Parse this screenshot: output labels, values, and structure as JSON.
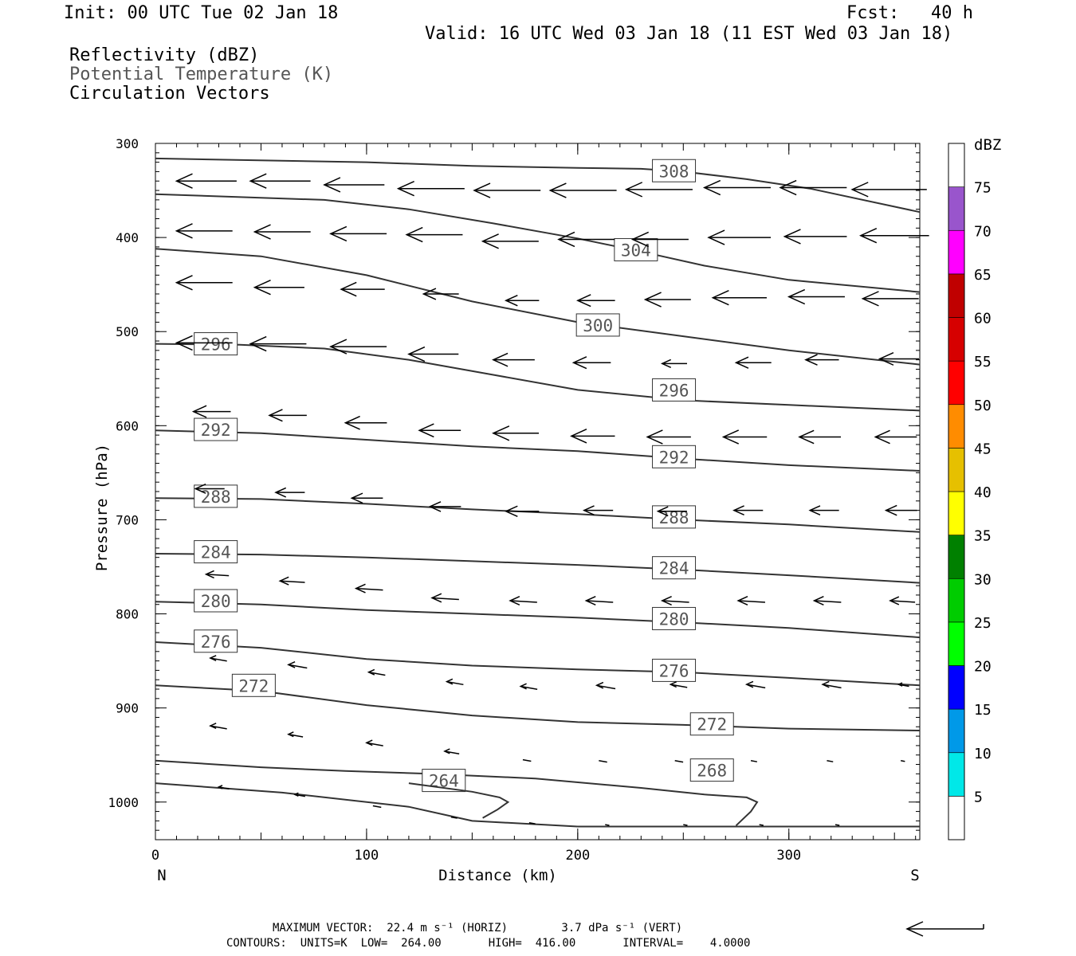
{
  "header": {
    "init": "Init: 00 UTC Tue 02 Jan 18",
    "fcst": "Fcst:   40 h",
    "valid": "Valid: 16 UTC Wed 03 Jan 18 (11 EST Wed 03 Jan 18)"
  },
  "fields": {
    "reflectivity": "Reflectivity (dBZ)",
    "theta": "Potential Temperature (K)",
    "vectors": "Circulation Vectors"
  },
  "colors": {
    "theta_contour": "#333333",
    "theta_label": "#555555",
    "colorbar": [
      "#00e8e8",
      "#0099e8",
      "#0000ff",
      "#00ff00",
      "#00cc00",
      "#008000",
      "#ffff00",
      "#e6c000",
      "#ff8c00",
      "#ff0000",
      "#d60000",
      "#c00000",
      "#ff00ff",
      "#9955cc"
    ]
  },
  "footer": {
    "max_vector": "MAXIMUM VECTOR:  22.4 m s⁻¹ (HORIZ)        3.7 dPa s⁻¹ (VERT)",
    "contours": "CONTOURS:  UNITS=K  LOW=  264.00       HIGH=  416.00       INTERVAL=    4.0000"
  },
  "chart_data": {
    "type": "line",
    "xlabel": "Distance (km)",
    "ylabel": "Pressure (hPa)",
    "xlim": [
      0,
      362
    ],
    "ylim": [
      1040,
      300
    ],
    "x_ticks": [
      0,
      100,
      200,
      300
    ],
    "y_ticks": [
      300,
      400,
      500,
      600,
      700,
      800,
      900,
      1000
    ],
    "left_end_label": "N",
    "right_end_label": "S",
    "colorbar": {
      "unit": "dBZ",
      "levels": [
        5,
        10,
        15,
        20,
        25,
        30,
        35,
        40,
        45,
        50,
        55,
        60,
        65,
        70,
        75
      ]
    },
    "theta_contours": [
      {
        "level": 308,
        "points": [
          [
            0,
            316
          ],
          [
            100,
            320
          ],
          [
            150,
            324
          ],
          [
            200,
            326
          ],
          [
            230,
            327
          ],
          [
            250,
            330
          ],
          [
            280,
            338
          ],
          [
            310,
            348
          ],
          [
            362,
            373
          ]
        ],
        "labels": [
          [
            235,
            329
          ]
        ]
      },
      {
        "level": 304,
        "points": [
          [
            0,
            354
          ],
          [
            80,
            360
          ],
          [
            120,
            370
          ],
          [
            160,
            385
          ],
          [
            200,
            401
          ],
          [
            230,
            415
          ],
          [
            260,
            430
          ],
          [
            300,
            445
          ],
          [
            362,
            458
          ]
        ],
        "labels": [
          [
            217,
            413
          ]
        ]
      },
      {
        "level": 300,
        "points": [
          [
            0,
            412
          ],
          [
            50,
            420
          ],
          [
            100,
            440
          ],
          [
            150,
            468
          ],
          [
            200,
            490
          ],
          [
            250,
            505
          ],
          [
            300,
            520
          ],
          [
            362,
            535
          ]
        ],
        "labels": [
          [
            199,
            493
          ]
        ]
      },
      {
        "level": 296,
        "points": [
          [
            0,
            513
          ],
          [
            40,
            514
          ],
          [
            80,
            518
          ],
          [
            120,
            530
          ],
          [
            160,
            546
          ],
          [
            200,
            562
          ],
          [
            250,
            573
          ],
          [
            300,
            578
          ],
          [
            362,
            584
          ]
        ],
        "labels": [
          [
            18,
            513
          ],
          [
            235,
            562
          ]
        ]
      },
      {
        "level": 292,
        "points": [
          [
            0,
            605
          ],
          [
            50,
            608
          ],
          [
            100,
            615
          ],
          [
            150,
            622
          ],
          [
            200,
            627
          ],
          [
            250,
            635
          ],
          [
            300,
            642
          ],
          [
            362,
            648
          ]
        ],
        "labels": [
          [
            18,
            604
          ],
          [
            235,
            633
          ]
        ]
      },
      {
        "level": 288,
        "points": [
          [
            0,
            677
          ],
          [
            50,
            678
          ],
          [
            100,
            683
          ],
          [
            150,
            689
          ],
          [
            200,
            694
          ],
          [
            250,
            700
          ],
          [
            300,
            705
          ],
          [
            362,
            713
          ]
        ],
        "labels": [
          [
            18,
            675
          ],
          [
            235,
            697
          ]
        ]
      },
      {
        "level": 284,
        "points": [
          [
            0,
            736
          ],
          [
            50,
            737
          ],
          [
            100,
            740
          ],
          [
            150,
            744
          ],
          [
            200,
            748
          ],
          [
            250,
            753
          ],
          [
            300,
            759
          ],
          [
            362,
            767
          ]
        ],
        "labels": [
          [
            18,
            734
          ],
          [
            235,
            751
          ]
        ]
      },
      {
        "level": 280,
        "points": [
          [
            0,
            787
          ],
          [
            50,
            790
          ],
          [
            100,
            796
          ],
          [
            150,
            800
          ],
          [
            200,
            804
          ],
          [
            250,
            809
          ],
          [
            300,
            815
          ],
          [
            362,
            825
          ]
        ],
        "labels": [
          [
            18,
            786
          ],
          [
            235,
            805
          ]
        ]
      },
      {
        "level": 276,
        "points": [
          [
            0,
            830
          ],
          [
            50,
            836
          ],
          [
            100,
            848
          ],
          [
            150,
            855
          ],
          [
            200,
            859
          ],
          [
            250,
            862
          ],
          [
            300,
            868
          ],
          [
            362,
            876
          ]
        ],
        "labels": [
          [
            18,
            829
          ],
          [
            235,
            860
          ]
        ]
      },
      {
        "level": 272,
        "points": [
          [
            0,
            876
          ],
          [
            50,
            882
          ],
          [
            100,
            897
          ],
          [
            150,
            908
          ],
          [
            200,
            915
          ],
          [
            250,
            918
          ],
          [
            300,
            922
          ],
          [
            362,
            924
          ]
        ],
        "labels": [
          [
            36,
            876
          ],
          [
            253,
            917
          ]
        ]
      },
      {
        "level": 268,
        "points": [
          [
            0,
            956
          ],
          [
            50,
            963
          ],
          [
            90,
            967
          ],
          [
            130,
            970
          ],
          [
            180,
            975
          ],
          [
            230,
            985
          ],
          [
            260,
            992
          ],
          [
            280,
            995
          ],
          [
            285,
            1000
          ],
          [
            282,
            1010
          ],
          [
            275,
            1025
          ]
        ],
        "labels": [
          [
            253,
            966
          ]
        ]
      },
      {
        "level": 264,
        "points": [
          [
            0,
            980
          ],
          [
            60,
            990
          ],
          [
            120,
            1005
          ],
          [
            150,
            1020
          ],
          [
            200,
            1026
          ],
          [
            362,
            1026
          ]
        ],
        "labels": [
          [
            126,
            977
          ]
        ]
      },
      {
        "level": 264,
        "points": [
          [
            120,
            980
          ],
          [
            150,
            989
          ],
          [
            163,
            995
          ],
          [
            167,
            1000
          ],
          [
            162,
            1008
          ],
          [
            155,
            1017
          ]
        ],
        "labels": []
      }
    ],
    "vectors": [
      {
        "x": 10,
        "p": 340,
        "len": 29
      },
      {
        "x": 45,
        "p": 340,
        "len": 29
      },
      {
        "x": 80,
        "p": 344,
        "len": 29
      },
      {
        "x": 115,
        "p": 348,
        "len": 32
      },
      {
        "x": 151,
        "p": 350,
        "len": 32
      },
      {
        "x": 187,
        "p": 350,
        "len": 32
      },
      {
        "x": 223,
        "p": 349,
        "len": 32
      },
      {
        "x": 260,
        "p": 347,
        "len": 32
      },
      {
        "x": 296,
        "p": 347,
        "len": 32
      },
      {
        "x": 330,
        "p": 349,
        "len": 36
      },
      {
        "x": 10,
        "p": 393,
        "len": 27
      },
      {
        "x": 47,
        "p": 394,
        "len": 27
      },
      {
        "x": 83,
        "p": 396,
        "len": 27
      },
      {
        "x": 119,
        "p": 397,
        "len": 27
      },
      {
        "x": 155,
        "p": 404,
        "len": 27
      },
      {
        "x": 191,
        "p": 402,
        "len": 27
      },
      {
        "x": 226,
        "p": 402,
        "len": 27
      },
      {
        "x": 262,
        "p": 400,
        "len": 30
      },
      {
        "x": 298,
        "p": 399,
        "len": 30
      },
      {
        "x": 334,
        "p": 398,
        "len": 33
      },
      {
        "x": 10,
        "p": 448,
        "len": 27
      },
      {
        "x": 47,
        "p": 453,
        "len": 24
      },
      {
        "x": 88,
        "p": 455,
        "len": 21
      },
      {
        "x": 127,
        "p": 460,
        "len": 17
      },
      {
        "x": 166,
        "p": 467,
        "len": 16
      },
      {
        "x": 200,
        "p": 467,
        "len": 18
      },
      {
        "x": 232,
        "p": 466,
        "len": 22
      },
      {
        "x": 264,
        "p": 464,
        "len": 26
      },
      {
        "x": 300,
        "p": 463,
        "len": 27
      },
      {
        "x": 335,
        "p": 465,
        "len": 27
      },
      {
        "x": 10,
        "p": 512,
        "len": 27
      },
      {
        "x": 45,
        "p": 513,
        "len": 27
      },
      {
        "x": 83,
        "p": 516,
        "len": 27
      },
      {
        "x": 120,
        "p": 524,
        "len": 24
      },
      {
        "x": 160,
        "p": 530,
        "len": 20
      },
      {
        "x": 198,
        "p": 533,
        "len": 18
      },
      {
        "x": 240,
        "p": 534,
        "len": 12
      },
      {
        "x": 275,
        "p": 533,
        "len": 17
      },
      {
        "x": 308,
        "p": 530,
        "len": 16
      },
      {
        "x": 343,
        "p": 529,
        "len": 19
      },
      {
        "x": 18,
        "p": 585,
        "len": 18
      },
      {
        "x": 54,
        "p": 589,
        "len": 18
      },
      {
        "x": 90,
        "p": 597,
        "len": 20
      },
      {
        "x": 125,
        "p": 605,
        "len": 20
      },
      {
        "x": 160,
        "p": 608,
        "len": 22
      },
      {
        "x": 197,
        "p": 611,
        "len": 21
      },
      {
        "x": 233,
        "p": 612,
        "len": 21
      },
      {
        "x": 269,
        "p": 612,
        "len": 21
      },
      {
        "x": 305,
        "p": 612,
        "len": 20
      },
      {
        "x": 341,
        "p": 612,
        "len": 20
      },
      {
        "x": 19,
        "p": 667,
        "len": 14
      },
      {
        "x": 57,
        "p": 671,
        "len": 14
      },
      {
        "x": 93,
        "p": 677,
        "len": 15
      },
      {
        "x": 130,
        "p": 686,
        "len": 15
      },
      {
        "x": 166,
        "p": 691,
        "len": 16
      },
      {
        "x": 203,
        "p": 690,
        "len": 14
      },
      {
        "x": 238,
        "p": 691,
        "len": 14
      },
      {
        "x": 274,
        "p": 690,
        "len": 14
      },
      {
        "x": 310,
        "p": 690,
        "len": 14
      },
      {
        "x": 346,
        "p": 690,
        "len": 15
      },
      {
        "x": 24,
        "p": 758,
        "len": 11
      },
      {
        "x": 59,
        "p": 765,
        "len": 12
      },
      {
        "x": 95,
        "p": 773,
        "len": 13
      },
      {
        "x": 131,
        "p": 783,
        "len": 13
      },
      {
        "x": 168,
        "p": 786,
        "len": 13
      },
      {
        "x": 204,
        "p": 786,
        "len": 13
      },
      {
        "x": 240,
        "p": 786,
        "len": 13
      },
      {
        "x": 276,
        "p": 786,
        "len": 13
      },
      {
        "x": 312,
        "p": 786,
        "len": 13
      },
      {
        "x": 348,
        "p": 786,
        "len": 12
      },
      {
        "x": 26,
        "p": 847,
        "len": 8
      },
      {
        "x": 63,
        "p": 854,
        "len": 9
      },
      {
        "x": 101,
        "p": 862,
        "len": 8
      },
      {
        "x": 138,
        "p": 872,
        "len": 8
      },
      {
        "x": 173,
        "p": 877,
        "len": 8
      },
      {
        "x": 209,
        "p": 876,
        "len": 9
      },
      {
        "x": 244,
        "p": 875,
        "len": 8
      },
      {
        "x": 280,
        "p": 875,
        "len": 9
      },
      {
        "x": 316,
        "p": 875,
        "len": 9
      },
      {
        "x": 352,
        "p": 875,
        "len": 5
      },
      {
        "x": 26,
        "p": 919,
        "len": 8
      },
      {
        "x": 63,
        "p": 928,
        "len": 7
      },
      {
        "x": 100,
        "p": 937,
        "len": 8
      },
      {
        "x": 137,
        "p": 946,
        "len": 7
      },
      {
        "x": 174,
        "p": 955,
        "len": 4
      },
      {
        "x": 210,
        "p": 956,
        "len": 4
      },
      {
        "x": 246,
        "p": 956,
        "len": 4
      },
      {
        "x": 282,
        "p": 956,
        "len": 3
      },
      {
        "x": 318,
        "p": 956,
        "len": 3
      },
      {
        "x": 353,
        "p": 956,
        "len": 2
      },
      {
        "x": 30,
        "p": 984,
        "len": 5
      },
      {
        "x": 66,
        "p": 992,
        "len": 5
      },
      {
        "x": 103,
        "p": 1004,
        "len": 4
      },
      {
        "x": 140,
        "p": 1016,
        "len": 3
      },
      {
        "x": 177,
        "p": 1022,
        "len": 3
      },
      {
        "x": 213,
        "p": 1024,
        "len": 2
      },
      {
        "x": 250,
        "p": 1024,
        "len": 2
      },
      {
        "x": 286,
        "p": 1024,
        "len": 2
      },
      {
        "x": 322,
        "p": 1024,
        "len": 2
      }
    ]
  }
}
